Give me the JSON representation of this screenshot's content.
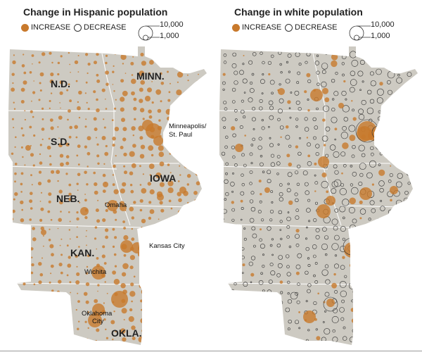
{
  "left": {
    "title": "Change in Hispanic population",
    "legend": {
      "increase": "INCREASE",
      "decrease": "DECREASE",
      "scale_large": "10,000",
      "scale_small": "1,000"
    },
    "states": [
      "N.D.",
      "S.D.",
      "NEB.",
      "KAN.",
      "OKLA.",
      "MINN.",
      "IOWA"
    ],
    "cities": [
      "Minneapolis/",
      "St. Paul",
      "Omaha",
      "Kansas City",
      "Wichita",
      "Oklahoma",
      "City"
    ]
  },
  "right": {
    "title": "Change in white population",
    "legend": {
      "increase": "INCREASE",
      "decrease": "DECREASE",
      "scale_large": "10,000",
      "scale_small": "1,000"
    }
  },
  "colors": {
    "land": "#cdcac2",
    "increase": "#c8792c",
    "decrease_stroke": "#333333",
    "border": "#ffffff"
  }
}
